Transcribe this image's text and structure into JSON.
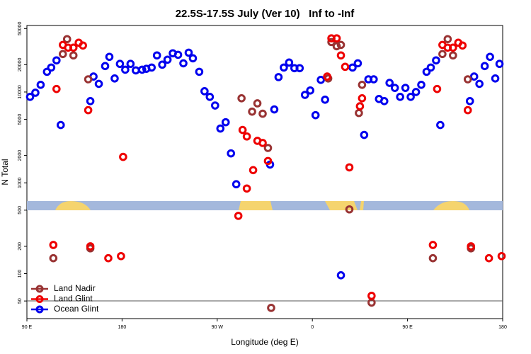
{
  "chart_data": {
    "type": "scatter",
    "title": "22.5S-17.5S July (Ver 10)   Inf to -Inf",
    "x_label": "Longitude (deg E)",
    "y_label": "N Total",
    "log_y": true,
    "legend": "lower left",
    "xlim": [
      90,
      540
    ],
    "xticks": [
      {
        "value": 90,
        "label": "90 E"
      },
      180,
      {
        "value": 270,
        "label": "90 W"
      },
      {
        "value": 360,
        "label": "0"
      },
      {
        "value": 450,
        "label": "90 E"
      },
      {
        "value": 540,
        "label": "180"
      }
    ],
    "ylim": [
      32,
      54000
    ],
    "yticks": [
      50,
      100,
      200,
      500,
      1000,
      2000,
      5000,
      10000,
      20000,
      50000
    ],
    "series": [
      {
        "name": "Ocean Glint",
        "color": "#0000ee",
        "x": [
          93,
          98,
          103,
          109,
          113,
          118,
          122,
          150,
          153,
          158,
          164,
          168,
          173,
          178,
          183,
          188,
          193,
          199,
          203,
          208,
          213,
          218,
          223,
          228,
          233,
          238,
          243,
          247,
          253,
          258,
          263,
          268,
          273,
          278,
          283,
          288,
          320,
          324,
          328,
          333,
          338,
          343,
          348,
          353,
          358,
          363,
          368,
          372,
          387,
          398,
          403,
          409,
          413,
          418,
          423,
          428,
          433,
          438,
          443,
          448,
          453,
          458,
          463,
          468,
          472,
          477,
          481,
          509,
          513,
          518,
          523,
          528,
          533,
          537
        ],
        "values": [
          8840,
          9820,
          12000,
          16700,
          18600,
          22300,
          4330,
          7940,
          14800,
          12300,
          19300,
          24400,
          14100,
          20400,
          17600,
          20400,
          17300,
          17600,
          18000,
          18600,
          25300,
          20000,
          22700,
          26700,
          25700,
          20700,
          27100,
          23500,
          16700,
          10200,
          8840,
          7100,
          3960,
          4650,
          2110,
          965,
          1590,
          6430,
          14600,
          18600,
          21100,
          18300,
          18300,
          9300,
          10400,
          5560,
          13600,
          8230,
          96,
          18600,
          20700,
          3370,
          13800,
          13800,
          8380,
          7940,
          12600,
          11100,
          8840,
          11100,
          8840,
          10000,
          12000,
          16700,
          18600,
          22300,
          4330,
          7940,
          14800,
          12300,
          19300,
          24400,
          14100,
          20400
        ]
      },
      {
        "name": "Land Nadir",
        "color": "#993333",
        "x": [
          115,
          124,
          128,
          134,
          148,
          150,
          293,
          303,
          308,
          313,
          318,
          321,
          375,
          378,
          383,
          387,
          395,
          404,
          407,
          416,
          474,
          483,
          488,
          493,
          507,
          510
        ],
        "values": [
          148,
          26200,
          38200,
          25300,
          13800,
          190,
          8530,
          6080,
          7500,
          5770,
          2420,
          42,
          14100,
          35500,
          31900,
          33000,
          510,
          5870,
          12000,
          48,
          148,
          26200,
          38200,
          25300,
          13800,
          190
        ]
      },
      {
        "name": "Land Glint",
        "color": "#ee0000",
        "x": [
          115,
          118,
          124,
          129,
          134,
          139,
          143,
          148,
          150,
          167,
          179,
          181,
          290,
          294,
          298,
          298,
          304,
          308,
          313,
          318,
          374,
          378,
          383,
          387,
          391,
          395,
          405,
          407,
          416,
          474,
          478,
          483,
          488,
          493,
          498,
          502,
          507,
          510,
          527,
          539
        ],
        "values": [
          207,
          10800,
          33000,
          30800,
          30800,
          34900,
          32500,
          6310,
          200,
          148,
          156,
          1930,
          433,
          3820,
          866,
          3240,
          1380,
          2900,
          2750,
          1740,
          14800,
          39000,
          39000,
          25300,
          18950,
          1480,
          6970,
          8530,
          57,
          207,
          10800,
          33000,
          30800,
          30800,
          34900,
          32500,
          6310,
          200,
          148,
          156
        ]
      }
    ]
  }
}
